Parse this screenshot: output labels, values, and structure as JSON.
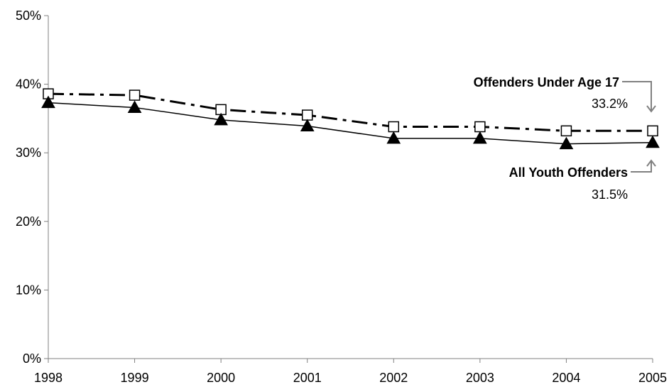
{
  "chart_data": {
    "type": "line",
    "title": "",
    "xlabel": "",
    "ylabel": "",
    "x": [
      "1998",
      "1999",
      "2000",
      "2001",
      "2002",
      "2003",
      "2004",
      "2005"
    ],
    "ylim": [
      0,
      50
    ],
    "yticks": [
      "0%",
      "10%",
      "20%",
      "30%",
      "40%",
      "50%"
    ],
    "grid": false,
    "series": [
      {
        "name": "Offenders Under Age 17",
        "values": [
          38.6,
          38.4,
          36.3,
          35.5,
          33.8,
          33.8,
          33.2,
          33.2
        ],
        "marker": "square-open",
        "line_style": "dash-dot",
        "color": "#000000"
      },
      {
        "name": "All Youth Offenders",
        "values": [
          37.3,
          36.6,
          34.8,
          33.9,
          32.1,
          32.1,
          31.3,
          31.5
        ],
        "marker": "triangle-filled",
        "line_style": "solid",
        "color": "#000000"
      }
    ],
    "annotations": [
      {
        "series": "Offenders Under Age 17",
        "label": "Offenders Under Age 17",
        "value": "33.2%"
      },
      {
        "series": "All Youth Offenders",
        "label": "All Youth Offenders",
        "value": "31.5%"
      }
    ],
    "arrow_color": "#808080"
  }
}
